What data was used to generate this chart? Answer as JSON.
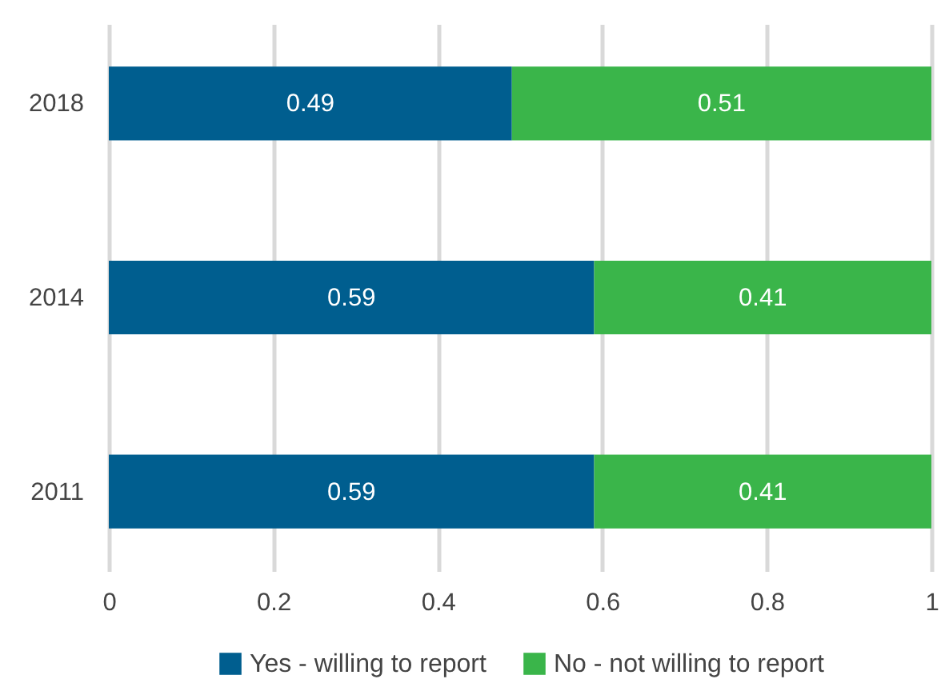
{
  "chart_data": {
    "type": "bar",
    "orientation": "horizontal",
    "stacked": true,
    "categories": [
      "2018",
      "2014",
      "2011"
    ],
    "series": [
      {
        "name": "Yes - willing to report",
        "color": "#005e8f",
        "values": [
          0.49,
          0.59,
          0.59
        ]
      },
      {
        "name": "No - not willing to report",
        "color": "#3ab54a",
        "values": [
          0.51,
          0.41,
          0.41
        ]
      }
    ],
    "xlim": [
      0,
      1
    ],
    "xticks": [
      0,
      0.2,
      0.4,
      0.6,
      0.8,
      1
    ],
    "grid": "x",
    "legend": "bottom",
    "data_labels": true
  }
}
